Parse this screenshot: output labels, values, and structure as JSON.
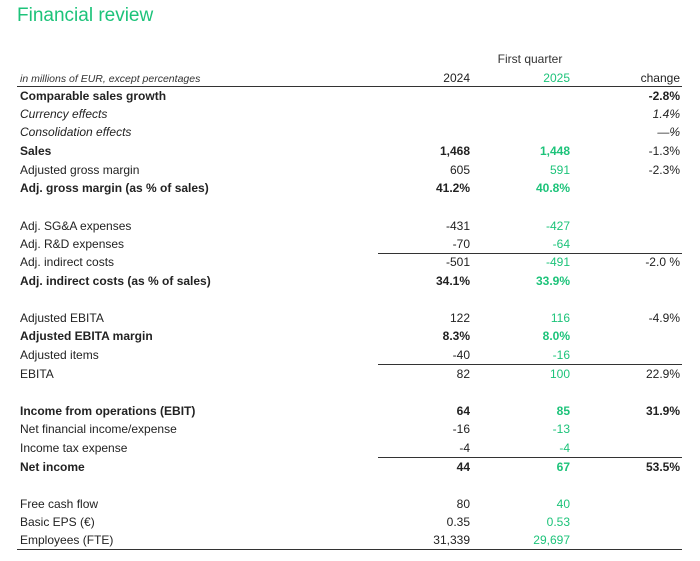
{
  "title": "Financial review",
  "header": {
    "period": "First quarter",
    "label": "in millions of EUR, except percentages",
    "year_a": "2024",
    "year_b": "2025",
    "change": "change"
  },
  "rows": [
    {
      "label": "Comparable sales growth",
      "v24": "",
      "v25": "",
      "chg": "-2.8%"
    },
    {
      "label": "Currency effects",
      "v24": "",
      "v25": "",
      "chg": "1.4%"
    },
    {
      "label": "Consolidation effects",
      "v24": "",
      "v25": "",
      "chg": "—%"
    },
    {
      "label": "Sales",
      "v24": "1,468",
      "v25": "1,448",
      "chg": "-1.3%"
    },
    {
      "label": "Adjusted gross margin",
      "v24": "605",
      "v25": "591",
      "chg": "-2.3%"
    },
    {
      "label": "Adj. gross margin (as % of sales)",
      "v24": "41.2%",
      "v25": "40.8%",
      "chg": ""
    },
    {
      "label": "Adj. SG&A expenses",
      "v24": "-431",
      "v25": "-427",
      "chg": ""
    },
    {
      "label": "Adj. R&D expenses",
      "v24": "-70",
      "v25": "-64",
      "chg": ""
    },
    {
      "label": "Adj. indirect costs",
      "v24": "-501",
      "v25": "-491",
      "chg": "-2.0 %"
    },
    {
      "label": "Adj. indirect costs (as % of sales)",
      "v24": "34.1%",
      "v25": "33.9%",
      "chg": ""
    },
    {
      "label": "Adjusted EBITA",
      "v24": "122",
      "v25": "116",
      "chg": "-4.9%"
    },
    {
      "label": "Adjusted EBITA margin",
      "v24": "8.3%",
      "v25": "8.0%",
      "chg": ""
    },
    {
      "label": "Adjusted items",
      "v24": "-40",
      "v25": "-16",
      "chg": ""
    },
    {
      "label": "EBITA",
      "v24": "82",
      "v25": "100",
      "chg": "22.9%"
    },
    {
      "label": "Income from operations (EBIT)",
      "v24": "64",
      "v25": "85",
      "chg": "31.9%"
    },
    {
      "label": "Net financial income/expense",
      "v24": "-16",
      "v25": "-13",
      "chg": ""
    },
    {
      "label": "Income tax expense",
      "v24": "-4",
      "v25": "-4",
      "chg": ""
    },
    {
      "label": "Net income",
      "v24": "44",
      "v25": "67",
      "chg": "53.5%"
    },
    {
      "label": "Free cash flow",
      "v24": "80",
      "v25": "40",
      "chg": ""
    },
    {
      "label": "Basic EPS (€)",
      "v24": "0.35",
      "v25": "0.53",
      "chg": ""
    },
    {
      "label": "Employees (FTE)",
      "v24": "31,339",
      "v25": "29,697",
      "chg": ""
    }
  ]
}
